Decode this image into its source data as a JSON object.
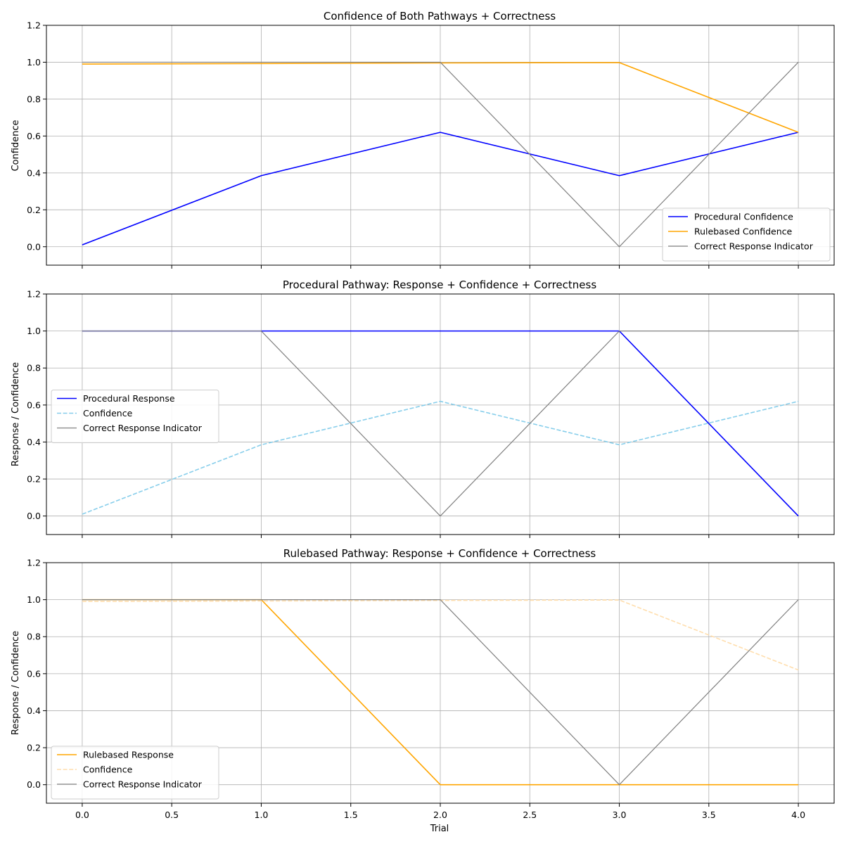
{
  "chart_data": [
    {
      "type": "line",
      "title": "Confidence of Both Pathways + Correctness",
      "xlabel": "",
      "ylabel": "Confidence",
      "x": [
        0,
        1,
        2,
        3,
        4
      ],
      "xlim": [
        -0.2,
        4.2
      ],
      "ylim": [
        -0.1,
        1.2
      ],
      "xticks": [
        "0.0",
        "0.5",
        "1.0",
        "1.5",
        "2.0",
        "2.5",
        "3.0",
        "3.5",
        "4.0"
      ],
      "show_xtick_labels": false,
      "yticks": [
        "0.0",
        "0.2",
        "0.4",
        "0.6",
        "0.8",
        "1.0",
        "1.2"
      ],
      "grid": true,
      "legend_position": "lower-right",
      "series": [
        {
          "name": "Procedural Confidence",
          "values": [
            0.01,
            0.385,
            0.62,
            0.385,
            0.62
          ],
          "color": "#0000ff",
          "dash": "solid"
        },
        {
          "name": "Rulebased Confidence",
          "values": [
            0.99,
            0.993,
            0.996,
            0.998,
            0.62
          ],
          "color": "#ffa500",
          "dash": "solid"
        },
        {
          "name": "Correct Response Indicator",
          "values": [
            1,
            1,
            1,
            0,
            1
          ],
          "color": "#808080",
          "dash": "solid"
        }
      ]
    },
    {
      "type": "line",
      "title": "Procedural Pathway: Response + Confidence + Correctness",
      "xlabel": "",
      "ylabel": "Response / Confidence",
      "x": [
        0,
        1,
        2,
        3,
        4
      ],
      "xlim": [
        -0.2,
        4.2
      ],
      "ylim": [
        -0.1,
        1.2
      ],
      "xticks": [
        "0.0",
        "0.5",
        "1.0",
        "1.5",
        "2.0",
        "2.5",
        "3.0",
        "3.5",
        "4.0"
      ],
      "show_xtick_labels": false,
      "yticks": [
        "0.0",
        "0.2",
        "0.4",
        "0.6",
        "0.8",
        "1.0",
        "1.2"
      ],
      "grid": true,
      "legend_position": "center-left",
      "series": [
        {
          "name": "Procedural Response",
          "values": [
            1,
            1,
            1,
            1,
            0
          ],
          "color": "#0000ff",
          "dash": "solid"
        },
        {
          "name": "Confidence",
          "values": [
            0.01,
            0.385,
            0.62,
            0.385,
            0.62
          ],
          "color": "#87ceeb",
          "dash": "dashed"
        },
        {
          "name": "Correct Response Indicator",
          "values": [
            1,
            1,
            0,
            1,
            1
          ],
          "color": "#808080",
          "dash": "solid"
        }
      ]
    },
    {
      "type": "line",
      "title": "Rulebased Pathway: Response + Confidence + Correctness",
      "xlabel": "Trial",
      "ylabel": "Response / Confidence",
      "x": [
        0,
        1,
        2,
        3,
        4
      ],
      "xlim": [
        -0.2,
        4.2
      ],
      "ylim": [
        -0.1,
        1.2
      ],
      "xticks": [
        "0.0",
        "0.5",
        "1.0",
        "1.5",
        "2.0",
        "2.5",
        "3.0",
        "3.5",
        "4.0"
      ],
      "show_xtick_labels": true,
      "yticks": [
        "0.0",
        "0.2",
        "0.4",
        "0.6",
        "0.8",
        "1.0",
        "1.2"
      ],
      "grid": true,
      "legend_position": "lower-left",
      "series": [
        {
          "name": "Rulebased Response",
          "values": [
            1,
            1,
            0,
            0,
            0
          ],
          "color": "#ffa500",
          "dash": "solid"
        },
        {
          "name": "Confidence",
          "values": [
            0.99,
            0.993,
            0.996,
            0.998,
            0.62
          ],
          "color": "#ffdead",
          "dash": "dashed"
        },
        {
          "name": "Correct Response Indicator",
          "values": [
            1,
            1,
            1,
            0,
            1
          ],
          "color": "#808080",
          "dash": "solid"
        }
      ]
    }
  ]
}
